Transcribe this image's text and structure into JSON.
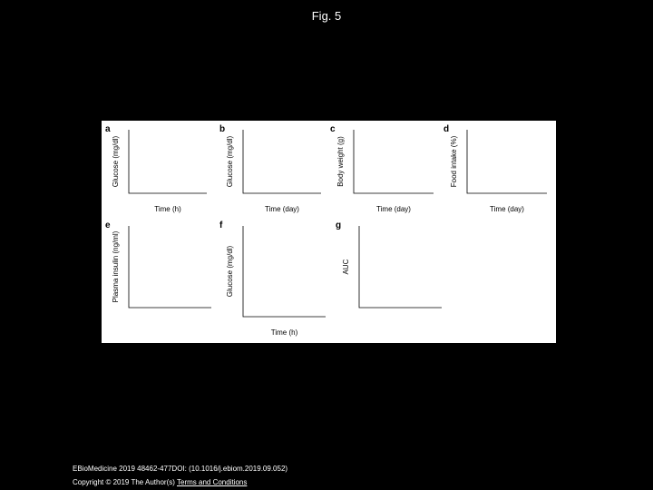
{
  "header": {
    "title": "Fig. 5"
  },
  "figure": {
    "panels": [
      {
        "letter": "a",
        "ylabel": "Glucose (mg/dl)",
        "xlabel": "Time (h)"
      },
      {
        "letter": "b",
        "ylabel": "Glucose (mg/dl)",
        "xlabel": "Time (day)"
      },
      {
        "letter": "c",
        "ylabel": "Body weight (g)",
        "xlabel": "Time (day)"
      },
      {
        "letter": "d",
        "ylabel": "Food intake (%)",
        "xlabel": "Time (day)"
      },
      {
        "letter": "e",
        "ylabel": "Plasma insulin (ng/ml)"
      },
      {
        "letter": "f",
        "ylabel": "Glucose (mg/dl)",
        "xlabel": "Time (h)"
      },
      {
        "letter": "g",
        "ylabel": "AUC"
      }
    ]
  },
  "footer": {
    "citation": "EBioMedicine 2019 48462-477DOI: (10.1016/j.ebiom.2019.09.052)",
    "copyright": "Copyright © 2019 The Author(s)",
    "link": "Terms and Conditions"
  }
}
